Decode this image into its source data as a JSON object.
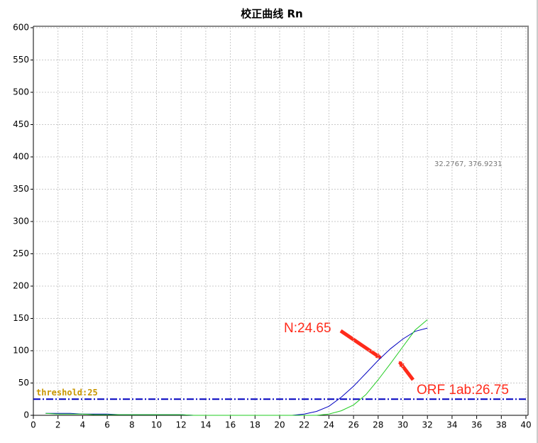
{
  "chart_data": {
    "type": "line",
    "title": "校正曲线 Rn",
    "x": [
      1,
      2,
      3,
      4,
      5,
      6,
      7,
      8,
      9,
      10,
      11,
      12,
      13,
      14,
      15,
      16,
      17,
      18,
      19,
      20,
      21,
      22,
      23,
      24,
      25,
      26,
      27,
      28,
      29,
      30,
      31,
      32
    ],
    "series": [
      {
        "color": "#0000c0",
        "values": [
          3,
          3,
          3,
          2,
          2,
          2,
          1,
          1,
          1,
          1,
          1,
          1,
          0,
          0,
          0,
          0,
          0,
          0,
          0,
          0,
          0,
          2,
          6,
          14,
          28,
          45,
          65,
          85,
          103,
          118,
          130,
          135
        ]
      },
      {
        "color": "#22cc22",
        "values": [
          3,
          2,
          2,
          2,
          1,
          1,
          1,
          1,
          1,
          1,
          1,
          1,
          0,
          0,
          0,
          0,
          0,
          0,
          0,
          0,
          0,
          0,
          0,
          2,
          7,
          16,
          32,
          55,
          80,
          106,
          132,
          148
        ]
      }
    ],
    "threshold": {
      "value": 25,
      "label": "threshold:25",
      "color": "#0000c0"
    },
    "xlim": [
      0,
      40
    ],
    "xticks": [
      0,
      2,
      4,
      6,
      8,
      10,
      12,
      14,
      16,
      18,
      20,
      22,
      24,
      26,
      28,
      30,
      32,
      34,
      36,
      38,
      40
    ],
    "ylim": [
      0,
      600
    ],
    "yticks": [
      0,
      50,
      100,
      150,
      200,
      250,
      300,
      350,
      400,
      450,
      500,
      550,
      600
    ],
    "grid": true,
    "annotations": [
      "N:24.65",
      "ORF 1ab:26.75",
      "32.2767,  376.9231"
    ]
  }
}
